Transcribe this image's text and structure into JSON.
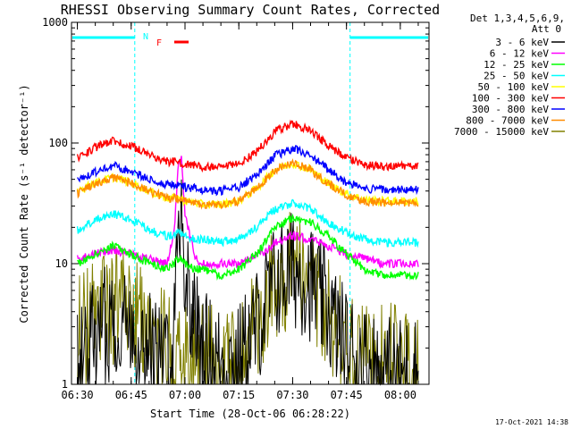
{
  "chart_data": {
    "type": "line",
    "title": "RHESSI Observing Summary Count Rates, Corrected",
    "xlabel": "Start Time (28-Oct-06 06:28:22)",
    "ylabel": "Corrected Count Rate (s⁻¹ detector⁻¹)",
    "y_scale": "log",
    "ylim": [
      1,
      1000
    ],
    "xlim": [
      "06:28:22",
      "08:08:00"
    ],
    "x_ticks": [
      "06:30",
      "06:45",
      "07:00",
      "07:15",
      "07:30",
      "07:45",
      "08:00"
    ],
    "y_ticks": [
      "1",
      "10",
      "100",
      "1000"
    ],
    "legend_header": [
      "Det 1,3,4,5,6,9,",
      "Att 0"
    ],
    "legend_placement": "right",
    "footer": "17-Oct-2021 14:38",
    "annotations": [
      {
        "text": "N",
        "color": "#00ffff"
      },
      {
        "text": "F",
        "color": "#ff0000"
      }
    ],
    "night_intervals": [
      [
        "06:28:22",
        "06:46"
      ],
      [
        "07:46",
        "08:08"
      ]
    ],
    "flare_interval": [
      "06:57",
      "07:01"
    ],
    "x": [
      "06:30",
      "06:35",
      "06:40",
      "06:45",
      "06:50",
      "06:55",
      "06:57",
      "06:58",
      "06:59",
      "07:00",
      "07:03",
      "07:05",
      "07:10",
      "07:15",
      "07:20",
      "07:23",
      "07:25",
      "07:30",
      "07:35",
      "07:40",
      "07:45",
      "07:50",
      "07:55",
      "08:00",
      "08:05"
    ],
    "series": [
      {
        "name": "3 - 6 keV",
        "color": "#000000",
        "values": [
          1.5,
          2.5,
          3.5,
          3.0,
          2.0,
          1.5,
          3.0,
          20.0,
          30.0,
          8.0,
          3.0,
          2.0,
          1.5,
          1.5,
          3.0,
          5.0,
          7.0,
          9.0,
          7.0,
          4.0,
          2.0,
          1.5,
          1.2,
          1.2,
          1.2
        ]
      },
      {
        "name": "6 - 12 keV",
        "color": "#ff00ff",
        "values": [
          11,
          12,
          13,
          12,
          11,
          10,
          18,
          60,
          80,
          25,
          11,
          10,
          10,
          10,
          12,
          13,
          15,
          17,
          16,
          14,
          12,
          11,
          10,
          10,
          10
        ]
      },
      {
        "name": "12 - 25 keV",
        "color": "#00ff00",
        "values": [
          10,
          12,
          14,
          12,
          10,
          9,
          10,
          11,
          11,
          10,
          9,
          9,
          8,
          9,
          12,
          16,
          20,
          24,
          22,
          17,
          12,
          9,
          8,
          8,
          8
        ]
      },
      {
        "name": "25 - 50 keV",
        "color": "#00ffff",
        "values": [
          19,
          23,
          26,
          23,
          19,
          17,
          17,
          18,
          18,
          17,
          16,
          16,
          15,
          16,
          20,
          25,
          28,
          32,
          28,
          22,
          18,
          16,
          15,
          15,
          15
        ]
      },
      {
        "name": "50 - 100 keV",
        "color": "#ffff00",
        "values": [
          39,
          47,
          52,
          47,
          40,
          35,
          35,
          35,
          34,
          33,
          32,
          31,
          31,
          33,
          42,
          52,
          60,
          68,
          60,
          46,
          38,
          34,
          33,
          33,
          33
        ]
      },
      {
        "name": "100 - 300 keV",
        "color": "#ff0000",
        "values": [
          75,
          92,
          104,
          94,
          80,
          70,
          70,
          69,
          68,
          67,
          65,
          63,
          62,
          67,
          85,
          105,
          125,
          145,
          125,
          95,
          75,
          66,
          64,
          64,
          64
        ]
      },
      {
        "name": "300 - 800 keV",
        "color": "#0000ff",
        "values": [
          48,
          58,
          65,
          58,
          50,
          45,
          45,
          44,
          44,
          43,
          42,
          41,
          40,
          43,
          55,
          68,
          78,
          90,
          78,
          60,
          47,
          42,
          41,
          41,
          41
        ]
      },
      {
        "name": "800 - 7000 keV",
        "color": "#ff8c00",
        "values": [
          38,
          46,
          52,
          46,
          40,
          35,
          35,
          34,
          34,
          33,
          32,
          31,
          31,
          33,
          42,
          52,
          60,
          70,
          60,
          46,
          37,
          33,
          32,
          32,
          32
        ]
      },
      {
        "name": "7000 - 15000 keV",
        "color": "#808000",
        "values": [
          2.5,
          3.5,
          4.5,
          4.0,
          3.0,
          2.0,
          2.0,
          1.5,
          1.5,
          1.5,
          1.5,
          1.5,
          1.5,
          1.5,
          3.0,
          5.0,
          7.0,
          9.0,
          7.0,
          4.0,
          2.0,
          1.5,
          1.5,
          1.5,
          1.5
        ]
      }
    ]
  }
}
